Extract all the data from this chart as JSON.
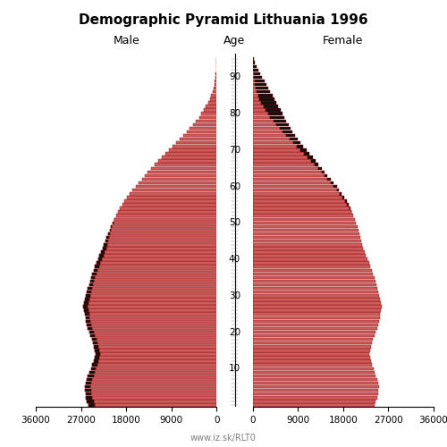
{
  "title": "Demographic Pyramid Lithuania 1996",
  "male_label": "Male",
  "female_label": "Female",
  "age_label": "Age",
  "website": "www.iz.sk/RLT0",
  "bar_color": "#CD5C5C",
  "bar_edge_color": "#8B0000",
  "bar_color_excess": "#111111",
  "bg_color": "#ffffff",
  "xlim": 36000,
  "age_groups": [
    0,
    1,
    2,
    3,
    4,
    5,
    6,
    7,
    8,
    9,
    10,
    11,
    12,
    13,
    14,
    15,
    16,
    17,
    18,
    19,
    20,
    21,
    22,
    23,
    24,
    25,
    26,
    27,
    28,
    29,
    30,
    31,
    32,
    33,
    34,
    35,
    36,
    37,
    38,
    39,
    40,
    41,
    42,
    43,
    44,
    45,
    46,
    47,
    48,
    49,
    50,
    51,
    52,
    53,
    54,
    55,
    56,
    57,
    58,
    59,
    60,
    61,
    62,
    63,
    64,
    65,
    66,
    67,
    68,
    69,
    70,
    71,
    72,
    73,
    74,
    75,
    76,
    77,
    78,
    79,
    80,
    81,
    82,
    83,
    84,
    85,
    86,
    87,
    88,
    89,
    90,
    91,
    92,
    93,
    94,
    95
  ],
  "male": [
    25500,
    25800,
    26000,
    26100,
    26200,
    26300,
    26100,
    25900,
    25600,
    25300,
    25000,
    24700,
    24500,
    24300,
    24100,
    24200,
    24400,
    24600,
    24800,
    25100,
    25300,
    25600,
    25800,
    26000,
    26100,
    26300,
    26400,
    26500,
    26400,
    26200,
    26000,
    25800,
    25600,
    25400,
    25200,
    25000,
    24700,
    24500,
    24200,
    23900,
    23600,
    23300,
    23000,
    22700,
    22400,
    22200,
    21900,
    21600,
    21300,
    21000,
    20700,
    20400,
    20000,
    19600,
    19200,
    18800,
    18300,
    17800,
    17300,
    16700,
    16100,
    15500,
    14900,
    14300,
    13700,
    13000,
    12300,
    11600,
    10900,
    10200,
    9400,
    8700,
    8000,
    7300,
    6600,
    5900,
    5300,
    4700,
    4100,
    3500,
    3000,
    2500,
    2100,
    1700,
    1350,
    1050,
    820,
    620,
    460,
    340,
    235,
    165,
    105,
    72,
    47,
    26
  ],
  "female": [
    24300,
    24500,
    24700,
    24900,
    25000,
    25200,
    25000,
    24700,
    24500,
    24300,
    24100,
    23800,
    23600,
    23400,
    23200,
    23300,
    23500,
    23700,
    23900,
    24200,
    24400,
    24700,
    24900,
    25200,
    25300,
    25400,
    25500,
    25600,
    25500,
    25400,
    25200,
    25000,
    24800,
    24600,
    24400,
    24200,
    23900,
    23700,
    23400,
    23100,
    22800,
    22500,
    22300,
    22000,
    21800,
    21600,
    21400,
    21200,
    21000,
    20800,
    20600,
    20300,
    20000,
    19700,
    19400,
    19100,
    18700,
    18200,
    17700,
    17200,
    16700,
    16100,
    15500,
    14900,
    14300,
    13700,
    13100,
    12500,
    11900,
    11300,
    10700,
    10100,
    9500,
    8900,
    8400,
    7900,
    7500,
    7100,
    6700,
    6300,
    5900,
    5500,
    5100,
    4700,
    4300,
    3900,
    3500,
    3100,
    2700,
    2300,
    1900,
    1500,
    1050,
    720,
    460,
    260
  ]
}
